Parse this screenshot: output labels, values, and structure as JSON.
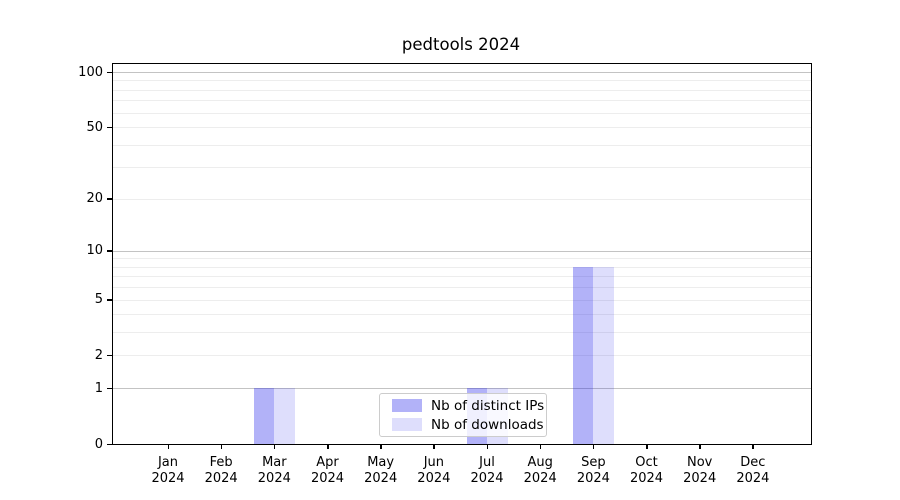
{
  "figure": {
    "background": "#ffffff"
  },
  "chart_data": {
    "type": "bar",
    "title": "pedtools 2024",
    "categories": [
      "Jan",
      "Feb",
      "Mar",
      "Apr",
      "May",
      "Jun",
      "Jul",
      "Aug",
      "Sep",
      "Oct",
      "Nov",
      "Dec"
    ],
    "category_year_label": "2024",
    "series": [
      {
        "name": "Nb of distinct IPs",
        "color": "rgba(30,30,235,0.34)",
        "values": [
          0,
          0,
          1,
          0,
          0,
          0,
          1,
          0,
          8,
          0,
          0,
          0
        ]
      },
      {
        "name": "Nb of downloads",
        "color": "rgba(30,30,235,0.145)",
        "values": [
          0,
          0,
          1,
          0,
          0,
          0,
          1,
          0,
          8,
          0,
          0,
          0
        ]
      }
    ],
    "xlabel": "",
    "ylabel": "",
    "yscale": "log1p",
    "ylim": [
      0,
      110
    ],
    "ytick_labels": [
      "0",
      "1",
      "2",
      "5",
      "10",
      "20",
      "50",
      "100"
    ],
    "ytick_values": [
      0,
      1,
      2,
      5,
      10,
      20,
      50,
      100
    ],
    "major_gridlines": [
      1,
      10,
      100
    ],
    "minor_gridlines": [
      2,
      3,
      4,
      5,
      6,
      7,
      8,
      9,
      20,
      30,
      40,
      50,
      60,
      70,
      80,
      90
    ],
    "grid_color_major": "#c3c3c3",
    "grid_color_minor": "#ededed",
    "legend_position": "lower center inside",
    "legend_entries": [
      "Nb of distinct IPs",
      "Nb of downloads"
    ]
  }
}
